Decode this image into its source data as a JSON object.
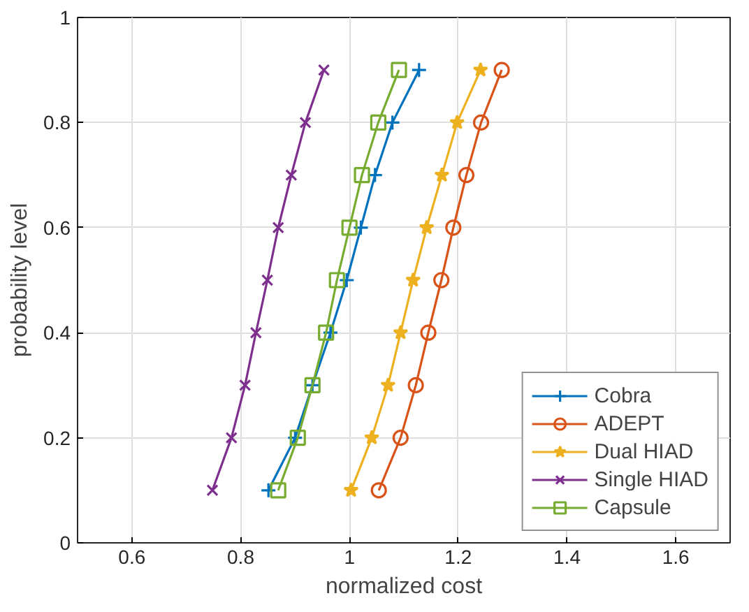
{
  "chart_data": {
    "type": "line",
    "xlabel": "normalized cost",
    "ylabel": "probability level",
    "xlim": [
      0.5,
      1.7
    ],
    "xticks": [
      0.6,
      0.8,
      1,
      1.2,
      1.4,
      1.6
    ],
    "ylim": [
      0,
      1
    ],
    "yticks": [
      0,
      0.2,
      0.4,
      0.6,
      0.8,
      1
    ],
    "grid": true,
    "legend": "bottom right",
    "line_style": "solid",
    "series": [
      {
        "name": "Cobra",
        "color": "#0072bd",
        "marker": "cross",
        "x": [
          0.851,
          0.9,
          0.932,
          0.965,
          0.995,
          1.021,
          1.047,
          1.079,
          1.128
        ],
        "values": [
          0.1,
          0.2,
          0.3,
          0.4,
          0.5,
          0.6,
          0.7,
          0.8,
          0.9
        ]
      },
      {
        "name": "ADEPT",
        "color": "#d95319",
        "marker": "circle",
        "x": [
          1.054,
          1.094,
          1.122,
          1.145,
          1.169,
          1.191,
          1.215,
          1.242,
          1.28
        ],
        "values": [
          0.1,
          0.2,
          0.3,
          0.4,
          0.5,
          0.6,
          0.7,
          0.8,
          0.9
        ]
      },
      {
        "name": "Dual HIAD",
        "color": "#edb120",
        "marker": "star",
        "x": [
          1.003,
          1.041,
          1.071,
          1.094,
          1.117,
          1.142,
          1.17,
          1.198,
          1.241
        ],
        "values": [
          0.1,
          0.2,
          0.3,
          0.4,
          0.5,
          0.6,
          0.7,
          0.8,
          0.9
        ]
      },
      {
        "name": "Single HIAD",
        "color": "#7e2f8e",
        "marker": "x",
        "x": [
          0.748,
          0.783,
          0.808,
          0.828,
          0.849,
          0.869,
          0.893,
          0.919,
          0.953
        ],
        "values": [
          0.1,
          0.2,
          0.3,
          0.4,
          0.5,
          0.6,
          0.7,
          0.8,
          0.9
        ]
      },
      {
        "name": "Capsule",
        "color": "#77ac30",
        "marker": "square",
        "x": [
          0.869,
          0.905,
          0.932,
          0.957,
          0.977,
          1.0,
          1.023,
          1.053,
          1.091
        ],
        "values": [
          0.1,
          0.2,
          0.3,
          0.4,
          0.5,
          0.6,
          0.7,
          0.8,
          0.9
        ]
      }
    ]
  }
}
